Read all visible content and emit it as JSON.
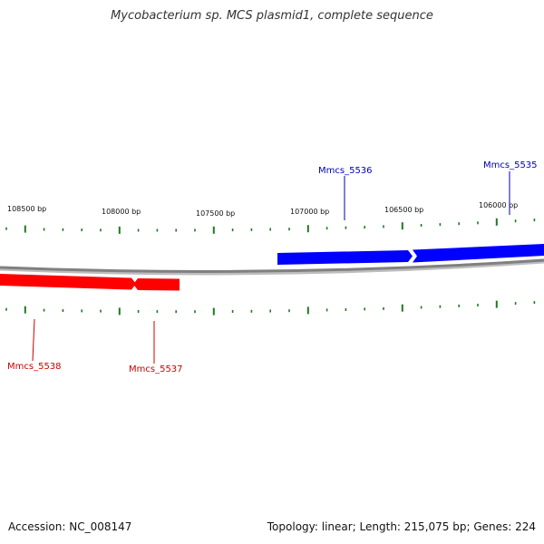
{
  "title": "Mycobacterium sp. MCS plasmid1, complete sequence",
  "footer": {
    "accession": "Accession: NC_008147",
    "summary": "Topology: linear; Length: 215,075 bp; Genes: 224"
  },
  "colors": {
    "forward_gene": "#0000ff",
    "reverse_gene": "#ff0000",
    "ticks": "#1e7a1e",
    "backbone": "#808080"
  },
  "axis": {
    "tick_labels": [
      "108500 bp",
      "108000 bp",
      "107500 bp",
      "107000 bp",
      "106500 bp",
      "106000 bp"
    ]
  },
  "genes": {
    "forward": [
      "Mmcs_5536",
      "Mmcs_5535"
    ],
    "reverse": [
      "Mmcs_5538",
      "Mmcs_5537"
    ]
  }
}
